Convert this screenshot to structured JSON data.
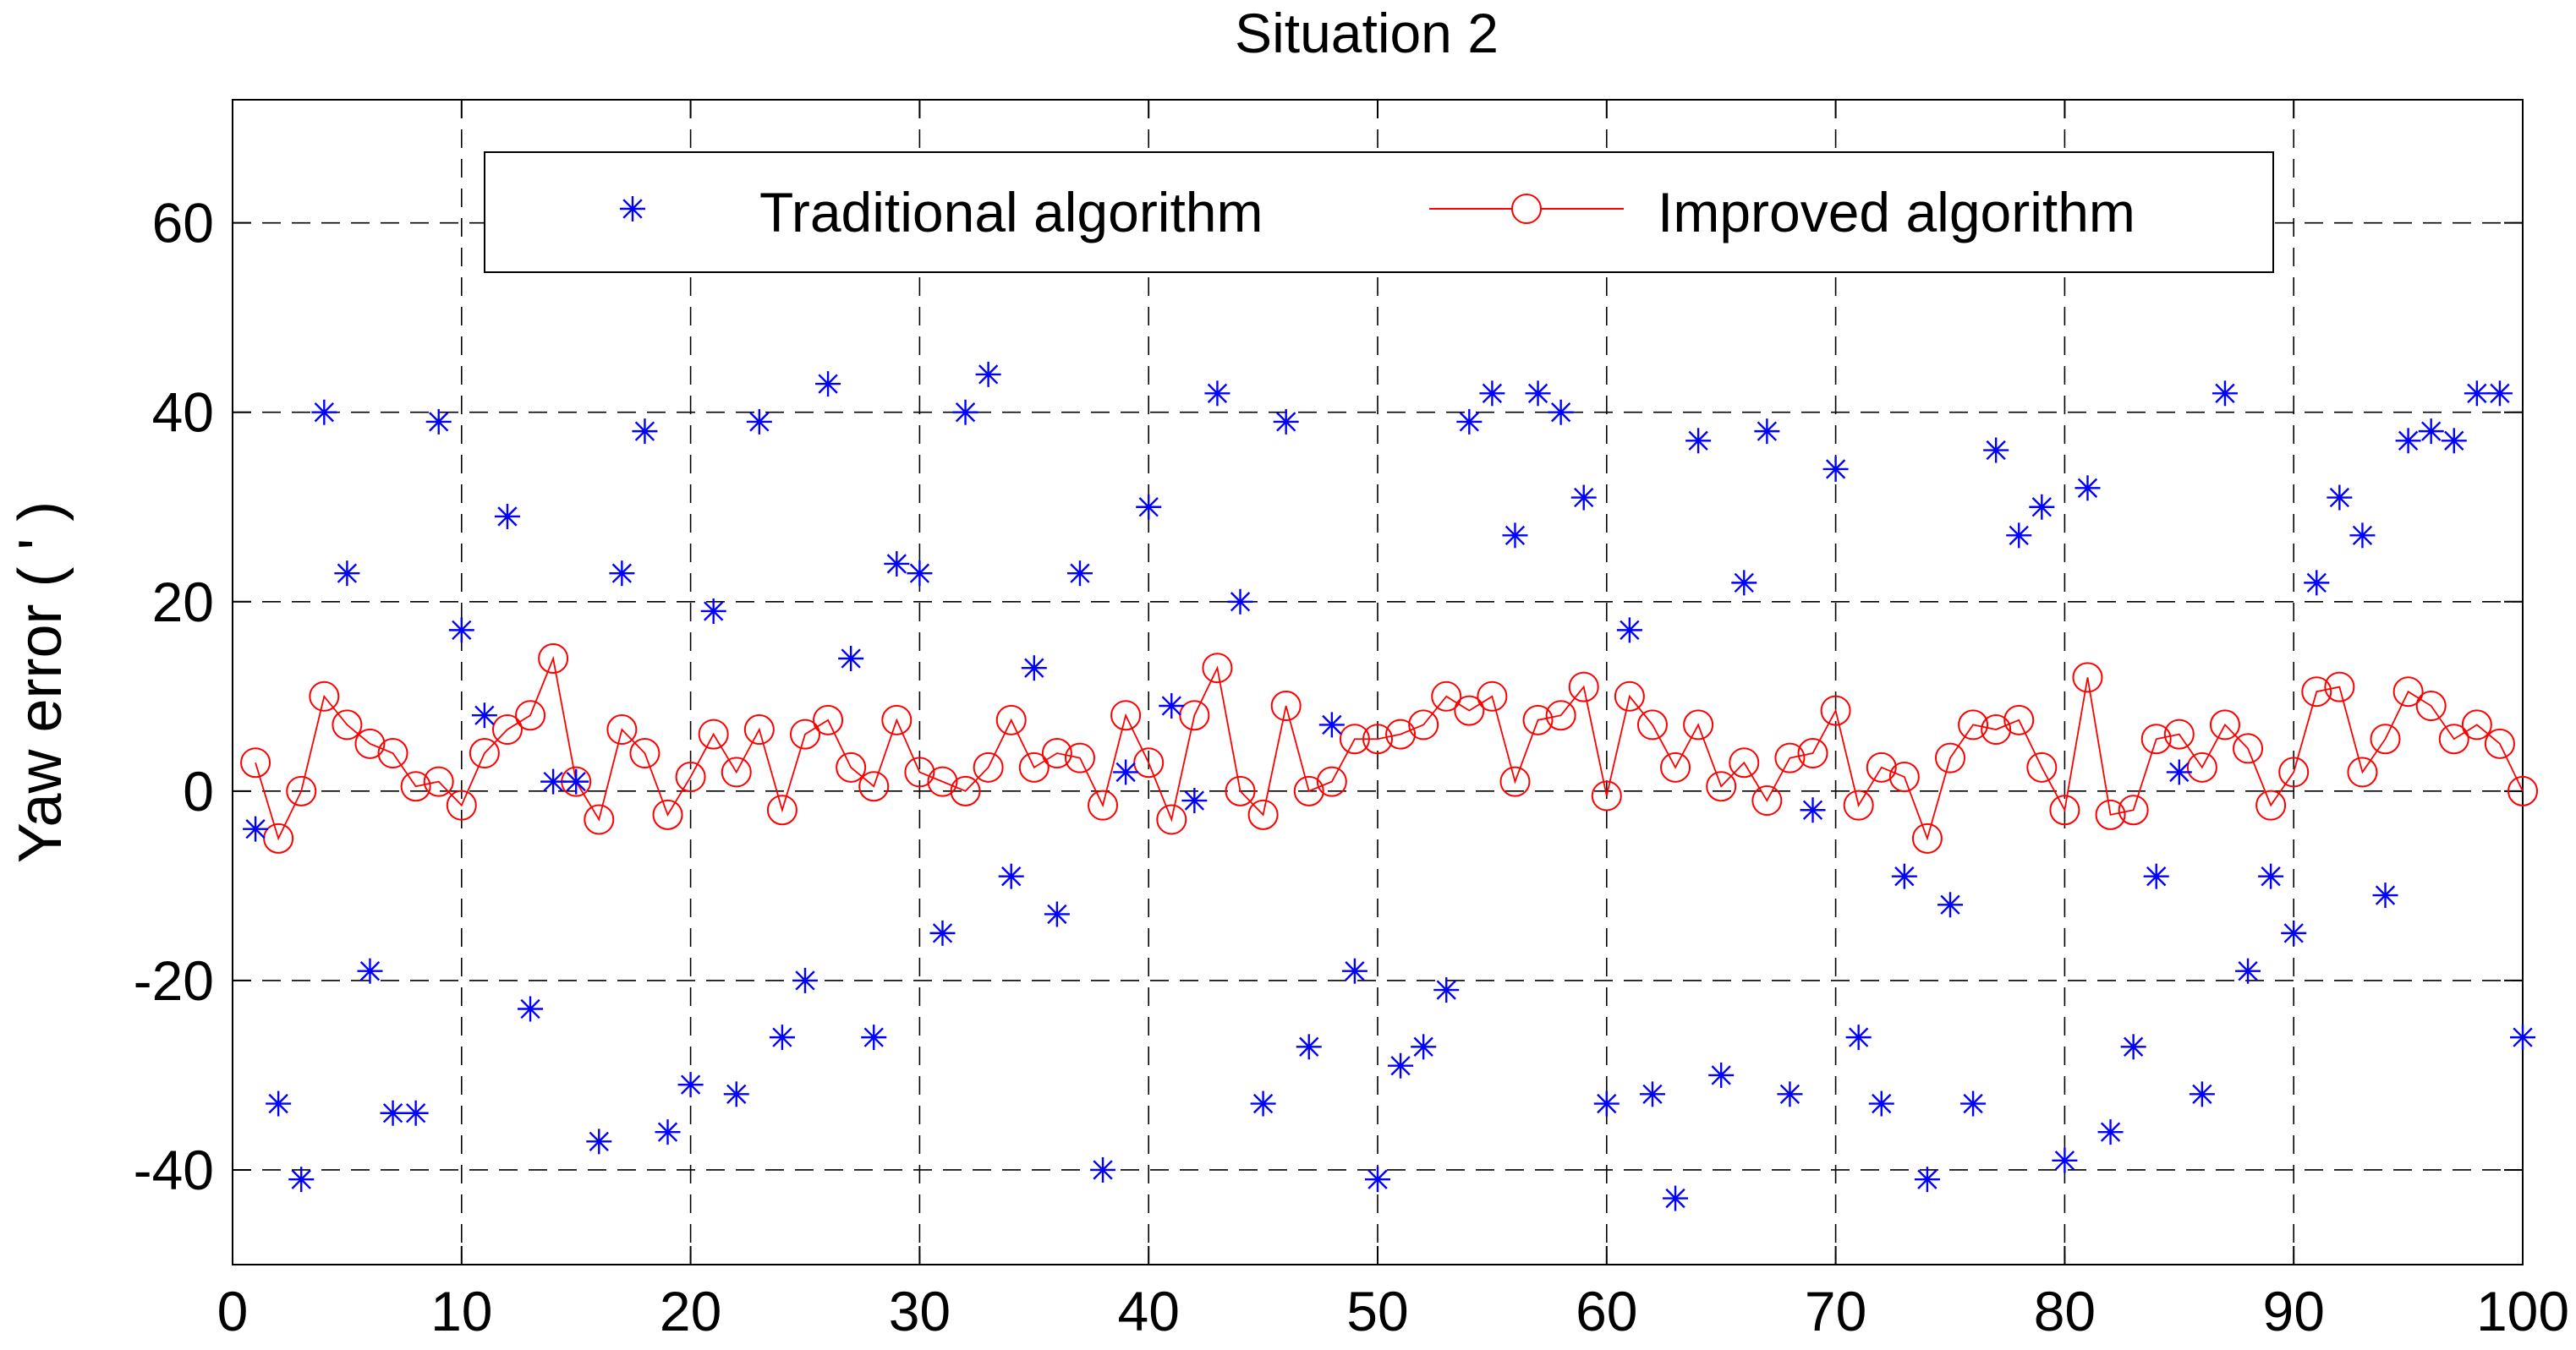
{
  "chart_data": {
    "type": "scatter",
    "title": "Situation 2",
    "xlabel": "",
    "ylabel": "Yaw error ( ' )",
    "xlim": [
      0,
      100
    ],
    "ylim": [
      -50,
      73
    ],
    "xticks": [
      0,
      10,
      20,
      30,
      40,
      50,
      60,
      70,
      80,
      90,
      100
    ],
    "yticks": [
      -40,
      -20,
      0,
      20,
      40,
      60
    ],
    "grid": true,
    "legend_position": "top-center",
    "colors": {
      "traditional": "#0000ff",
      "improved": "#ff0000"
    },
    "series": [
      {
        "name": "Traditional algorithm",
        "marker": "asterisk",
        "line": false,
        "x": [
          1,
          2,
          3,
          4,
          5,
          6,
          7,
          8,
          9,
          10,
          11,
          12,
          13,
          14,
          15,
          16,
          17,
          18,
          19,
          20,
          21,
          22,
          23,
          24,
          25,
          26,
          27,
          28,
          29,
          30,
          31,
          32,
          33,
          34,
          35,
          36,
          37,
          38,
          39,
          40,
          41,
          42,
          43,
          44,
          45,
          46,
          47,
          48,
          49,
          50,
          51,
          52,
          53,
          54,
          55,
          56,
          57,
          58,
          59,
          60,
          61,
          62,
          63,
          64,
          65,
          66,
          67,
          68,
          69,
          70,
          71,
          72,
          73,
          74,
          75,
          76,
          77,
          78,
          79,
          80,
          81,
          82,
          83,
          84,
          85,
          86,
          87,
          88,
          89,
          90,
          91,
          92,
          93,
          94,
          95,
          96,
          97,
          98,
          99,
          100
        ],
        "y": [
          -4,
          -33,
          -41,
          40,
          23,
          -19,
          -34,
          -34,
          39,
          17,
          8,
          29,
          -23,
          1,
          1,
          -37,
          23,
          38,
          -36,
          -31,
          19,
          -32,
          39,
          -26,
          -20,
          43,
          14,
          -26,
          24,
          23,
          -15,
          40,
          44,
          -9,
          13,
          -13,
          23,
          -40,
          2,
          30,
          9,
          -1,
          42,
          20,
          -33,
          39,
          -27,
          7,
          -19,
          -41,
          -29,
          -27,
          -21,
          39,
          42,
          27,
          42,
          40,
          31,
          -33,
          17,
          -32,
          -43,
          37,
          -30,
          22,
          38,
          -32,
          -2,
          34,
          -26,
          -33,
          -9,
          -41,
          -12,
          -33,
          36,
          27,
          30,
          -39,
          32,
          -36,
          -27,
          -9,
          2,
          -32,
          42,
          -19,
          -9,
          -15,
          22,
          31,
          27,
          -11,
          37,
          38,
          37,
          42,
          42,
          -26
        ]
      },
      {
        "name": "Improved algorithm",
        "marker": "circle",
        "line": true,
        "x": [
          1,
          2,
          3,
          4,
          5,
          6,
          7,
          8,
          9,
          10,
          11,
          12,
          13,
          14,
          15,
          16,
          17,
          18,
          19,
          20,
          21,
          22,
          23,
          24,
          25,
          26,
          27,
          28,
          29,
          30,
          31,
          32,
          33,
          34,
          35,
          36,
          37,
          38,
          39,
          40,
          41,
          42,
          43,
          44,
          45,
          46,
          47,
          48,
          49,
          50,
          51,
          52,
          53,
          54,
          55,
          56,
          57,
          58,
          59,
          60,
          61,
          62,
          63,
          64,
          65,
          66,
          67,
          68,
          69,
          70,
          71,
          72,
          73,
          74,
          75,
          76,
          77,
          78,
          79,
          80,
          81,
          82,
          83,
          84,
          85,
          86,
          87,
          88,
          89,
          90,
          91,
          92,
          93,
          94,
          95,
          96,
          97,
          98,
          99,
          100
        ],
        "y": [
          3,
          -5,
          0,
          10,
          7,
          5,
          4,
          0.5,
          1,
          -1.5,
          4,
          6.5,
          8,
          14,
          1,
          -3,
          6.5,
          4,
          -2.5,
          1.5,
          6,
          2,
          6.5,
          -2,
          6,
          7.5,
          2.5,
          0.5,
          7.5,
          2,
          1,
          0,
          2.5,
          7.5,
          2.5,
          4,
          3.5,
          -1.5,
          8,
          3,
          -3,
          8,
          13,
          0,
          -2.5,
          9,
          0,
          1,
          5.5,
          5.5,
          6,
          7,
          10,
          8.5,
          10,
          1,
          7.5,
          8,
          11,
          -0.5,
          10,
          7,
          2.5,
          7,
          0.5,
          3,
          -1,
          3.5,
          4,
          8.5,
          -1.5,
          2.5,
          1.5,
          -5,
          3.5,
          7,
          6.5,
          7.5,
          2.5,
          -2,
          12,
          -2.5,
          -2,
          5.5,
          6,
          2.5,
          7,
          4.5,
          -1.5,
          2,
          10.5,
          11,
          2,
          5.5,
          10.5,
          9,
          5.5,
          7,
          5,
          0
        ]
      }
    ]
  }
}
